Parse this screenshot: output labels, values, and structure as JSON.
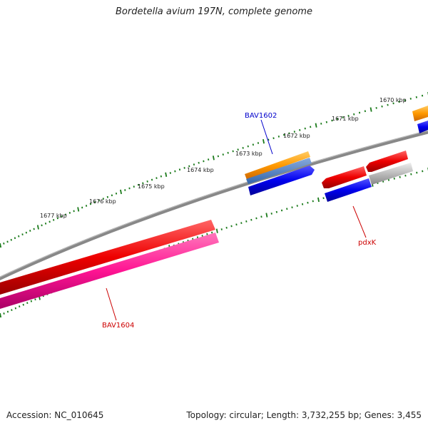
{
  "title": "Bordetella avium 197N, complete genome",
  "footer": {
    "accession": "Accession: NC_010645",
    "summary": "Topology: circular; Length: 3,732,255 bp; Genes: 3,455"
  },
  "scale_labels": [
    "1670 kbp",
    "1671 kbp",
    "1672 kbp",
    "1673 kbp",
    "1674 kbp",
    "1675 kbp",
    "1676 kbp",
    "1677 kbp"
  ],
  "genes": [
    {
      "name": "BAV1602",
      "color": "#0000cc"
    },
    {
      "name": "pdxK",
      "color": "#cc0000"
    },
    {
      "name": "BAV1604",
      "color": "#cc0000"
    }
  ],
  "colors": {
    "backbone": "#808080",
    "ticks": "#1a7a1a",
    "cds_forward": "#0000ee",
    "cds_reverse": "#ee0000",
    "orange": "#ff9900",
    "pink": "#ff1493",
    "grey": "#bbbbbb"
  }
}
